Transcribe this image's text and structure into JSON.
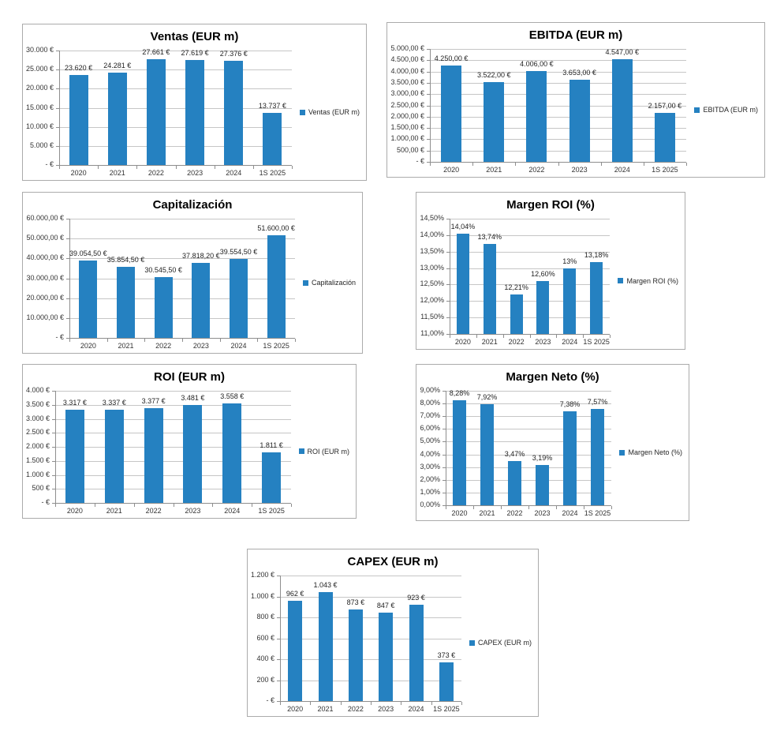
{
  "colors": {
    "bar": "#2581c1",
    "gridline": "#c6c6c6",
    "axis": "#8e8e8e",
    "frame": "#ababab",
    "text": "#333333",
    "title": "#000000",
    "background": "#ffffff"
  },
  "chart_data": [
    {
      "type": "bar",
      "title": "Ventas (EUR m)",
      "legend": "Ventas (EUR m)",
      "legend_position": "right",
      "grid": true,
      "categories": [
        "2020",
        "2021",
        "2022",
        "2023",
        "2024",
        "1S 2025"
      ],
      "values": [
        23620,
        24281,
        27661,
        27619,
        27376,
        13737
      ],
      "data_labels": [
        "23.620 €",
        "24.281 €",
        "27.661 €",
        "27.619 €",
        "27.376 €",
        "13.737 €"
      ],
      "ylim": [
        0,
        30000
      ],
      "yticks": [
        {
          "v": 30000,
          "label": "30.000 €"
        },
        {
          "v": 25000,
          "label": "25.000 €"
        },
        {
          "v": 20000,
          "label": "20.000 €"
        },
        {
          "v": 15000,
          "label": "15.000 €"
        },
        {
          "v": 10000,
          "label": "10.000 €"
        },
        {
          "v": 5000,
          "label": "5.000 €"
        },
        {
          "v": 0,
          "label": "- €"
        }
      ]
    },
    {
      "type": "bar",
      "title": "EBITDA (EUR m)",
      "legend": "EBITDA (EUR m)",
      "legend_position": "right",
      "grid": true,
      "categories": [
        "2020",
        "2021",
        "2022",
        "2023",
        "2024",
        "1S 2025"
      ],
      "values": [
        4250,
        3522,
        4006,
        3653,
        4547,
        2157
      ],
      "data_labels": [
        "4.250,00 €",
        "3.522,00 €",
        "4.006,00 €",
        "3.653,00 €",
        "4.547,00 €",
        "2.157,00 €"
      ],
      "ylim": [
        0,
        5000
      ],
      "yticks": [
        {
          "v": 5000,
          "label": "5.000,00 €"
        },
        {
          "v": 4500,
          "label": "4.500,00 €"
        },
        {
          "v": 4000,
          "label": "4.000,00 €"
        },
        {
          "v": 3500,
          "label": "3.500,00 €"
        },
        {
          "v": 3000,
          "label": "3.000,00 €"
        },
        {
          "v": 2500,
          "label": "2.500,00 €"
        },
        {
          "v": 2000,
          "label": "2.000,00 €"
        },
        {
          "v": 1500,
          "label": "1.500,00 €"
        },
        {
          "v": 1000,
          "label": "1.000,00 €"
        },
        {
          "v": 500,
          "label": "500,00 €"
        },
        {
          "v": 0,
          "label": "- €"
        }
      ]
    },
    {
      "type": "bar",
      "title": "Capitalización",
      "legend": "Capitalización",
      "legend_position": "right",
      "grid": true,
      "categories": [
        "2020",
        "2021",
        "2022",
        "2023",
        "2024",
        "1S 2025"
      ],
      "values": [
        39054.5,
        35854.5,
        30545.5,
        37818.2,
        39554.5,
        51600
      ],
      "data_labels": [
        "39.054,50 €",
        "35.854,50 €",
        "30.545,50 €",
        "37.818,20 €",
        "39.554,50 €",
        "51.600,00 €"
      ],
      "ylim": [
        0,
        60000
      ],
      "yticks": [
        {
          "v": 60000,
          "label": "60.000,00 €"
        },
        {
          "v": 50000,
          "label": "50.000,00 €"
        },
        {
          "v": 40000,
          "label": "40.000,00 €"
        },
        {
          "v": 30000,
          "label": "30.000,00 €"
        },
        {
          "v": 20000,
          "label": "20.000,00 €"
        },
        {
          "v": 10000,
          "label": "10.000,00 €"
        },
        {
          "v": 0,
          "label": "- €"
        }
      ]
    },
    {
      "type": "bar",
      "title": "Margen ROI (%)",
      "legend": "Margen ROI (%)",
      "legend_position": "right",
      "grid": true,
      "categories": [
        "2020",
        "2021",
        "2022",
        "2023",
        "2024",
        "1S 2025"
      ],
      "values": [
        14.04,
        13.74,
        12.21,
        12.6,
        13.0,
        13.18
      ],
      "data_labels": [
        "14,04%",
        "13,74%",
        "12,21%",
        "12,60%",
        "13%",
        "13,18%"
      ],
      "ylim": [
        11,
        14.5
      ],
      "yticks": [
        {
          "v": 14.5,
          "label": "14,50%"
        },
        {
          "v": 14.0,
          "label": "14,00%"
        },
        {
          "v": 13.5,
          "label": "13,50%"
        },
        {
          "v": 13.0,
          "label": "13,00%"
        },
        {
          "v": 12.5,
          "label": "12,50%"
        },
        {
          "v": 12.0,
          "label": "12,00%"
        },
        {
          "v": 11.5,
          "label": "11,50%"
        },
        {
          "v": 11.0,
          "label": "11,00%"
        }
      ]
    },
    {
      "type": "bar",
      "title": "ROI (EUR m)",
      "legend": "ROI (EUR m)",
      "legend_position": "right",
      "grid": true,
      "categories": [
        "2020",
        "2021",
        "2022",
        "2023",
        "2024",
        "1S 2025"
      ],
      "values": [
        3317,
        3337,
        3377,
        3481,
        3558,
        1811
      ],
      "data_labels": [
        "3.317 €",
        "3.337 €",
        "3.377 €",
        "3.481 €",
        "3.558 €",
        "1.811 €"
      ],
      "ylim": [
        0,
        4000
      ],
      "yticks": [
        {
          "v": 4000,
          "label": "4.000 €"
        },
        {
          "v": 3500,
          "label": "3.500 €"
        },
        {
          "v": 3000,
          "label": "3.000 €"
        },
        {
          "v": 2500,
          "label": "2.500 €"
        },
        {
          "v": 2000,
          "label": "2.000 €"
        },
        {
          "v": 1500,
          "label": "1.500 €"
        },
        {
          "v": 1000,
          "label": "1.000 €"
        },
        {
          "v": 500,
          "label": "500 €"
        },
        {
          "v": 0,
          "label": "- €"
        }
      ]
    },
    {
      "type": "bar",
      "title": "Margen Neto (%)",
      "legend": "Margen Neto (%)",
      "legend_position": "right",
      "grid": true,
      "categories": [
        "2020",
        "2021",
        "2022",
        "2023",
        "2024",
        "1S 2025"
      ],
      "values": [
        8.28,
        7.92,
        3.47,
        3.19,
        7.38,
        7.57
      ],
      "data_labels": [
        "8,28%",
        "7,92%",
        "3,47%",
        "3,19%",
        "7,38%",
        "7,57%"
      ],
      "ylim": [
        0,
        9
      ],
      "yticks": [
        {
          "v": 9,
          "label": "9,00%"
        },
        {
          "v": 8,
          "label": "8,00%"
        },
        {
          "v": 7,
          "label": "7,00%"
        },
        {
          "v": 6,
          "label": "6,00%"
        },
        {
          "v": 5,
          "label": "5,00%"
        },
        {
          "v": 4,
          "label": "4,00%"
        },
        {
          "v": 3,
          "label": "3,00%"
        },
        {
          "v": 2,
          "label": "2,00%"
        },
        {
          "v": 1,
          "label": "1,00%"
        },
        {
          "v": 0,
          "label": "0,00%"
        }
      ]
    },
    {
      "type": "bar",
      "title": "CAPEX (EUR m)",
      "legend": "CAPEX (EUR m)",
      "legend_position": "right",
      "grid": true,
      "categories": [
        "2020",
        "2021",
        "2022",
        "2023",
        "2024",
        "1S 2025"
      ],
      "values": [
        962,
        1043,
        873,
        847,
        923,
        373
      ],
      "data_labels": [
        "962 €",
        "1.043 €",
        "873 €",
        "847 €",
        "923 €",
        "373 €"
      ],
      "ylim": [
        0,
        1200
      ],
      "yticks": [
        {
          "v": 1200,
          "label": "1.200 €"
        },
        {
          "v": 1000,
          "label": "1.000 €"
        },
        {
          "v": 800,
          "label": "800 €"
        },
        {
          "v": 600,
          "label": "600 €"
        },
        {
          "v": 400,
          "label": "400 €"
        },
        {
          "v": 200,
          "label": "200 €"
        },
        {
          "v": 0,
          "label": "- €"
        }
      ]
    }
  ]
}
